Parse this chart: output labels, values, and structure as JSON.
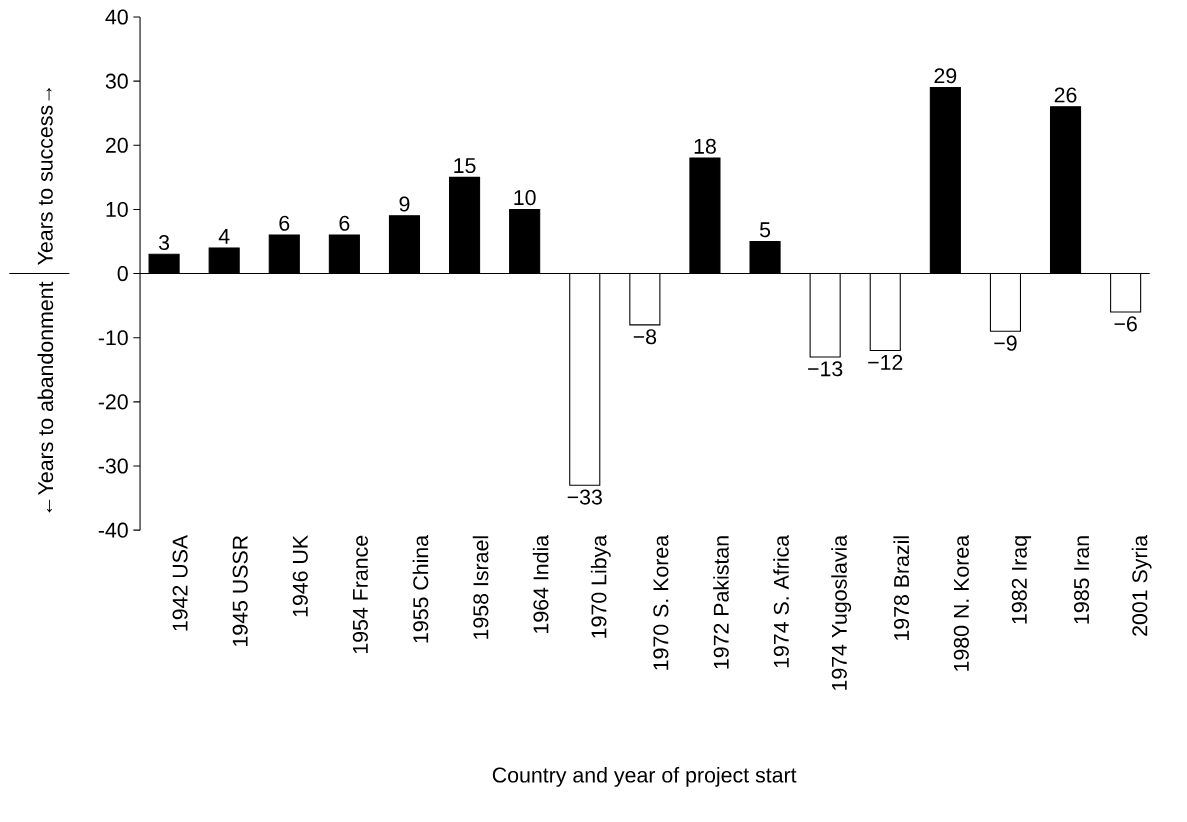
{
  "chart_data": {
    "type": "bar",
    "xlabel": "Country and year of project start",
    "ylabel": "Years to success→",
    "annotations": [
      "←Years to abandonment"
    ],
    "categories": [
      "1942 USA",
      "1945 USSR",
      "1946 UK",
      "1954 France",
      "1955 China",
      "1958 Israel",
      "1964 India",
      "1970 Libya",
      "1970 S. Korea",
      "1972 Pakistan",
      "1974 S. Africa",
      "1974 Yugoslavia",
      "1978 Brazil",
      "1980 N. Korea",
      "1982 Iraq",
      "1985 Iran",
      "2001 Syria"
    ],
    "values": [
      3,
      4,
      6,
      6,
      9,
      15,
      10,
      -33,
      -8,
      18,
      5,
      -13,
      -12,
      29,
      -9,
      26,
      -6
    ],
    "value_labels": [
      "3",
      "4",
      "6",
      "6",
      "9",
      "15",
      "10",
      "−33",
      "−8",
      "18",
      "5",
      "−13",
      "−12",
      "29",
      "−9",
      "26",
      "−6"
    ],
    "colors": [
      "#000000",
      "#000000",
      "#000000",
      "#000000",
      "#000000",
      "#000000",
      "#000000",
      "#ffffff",
      "#ffffff",
      "#000000",
      "#000000",
      "#ffffff",
      "#ffffff",
      "#000000",
      "#ffffff",
      "#000000",
      "#ffffff"
    ],
    "ylim": [
      -40,
      40
    ],
    "yticks": [
      -40,
      -30,
      -20,
      -10,
      0,
      10,
      20,
      30,
      40
    ]
  }
}
